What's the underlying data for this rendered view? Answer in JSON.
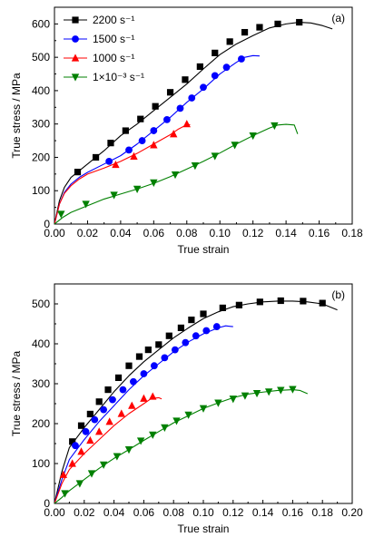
{
  "chart_data": [
    {
      "type": "line",
      "panel_label": "(a)",
      "xlabel": "True strain",
      "ylabel": "True stress / MPa",
      "xlim": [
        0,
        0.18
      ],
      "ylim": [
        0,
        650
      ],
      "xticks": [
        "0.00",
        "0.02",
        "0.04",
        "0.06",
        "0.08",
        "0.10",
        "0.12",
        "0.14",
        "0.16",
        "0.18"
      ],
      "yticks": [
        "0",
        "100",
        "200",
        "300",
        "400",
        "500",
        "600"
      ],
      "legend_position": "top-left",
      "series": [
        {
          "name": "2200 s⁻¹",
          "color": "#000000",
          "marker": "square",
          "curve": [
            [
              0,
              0
            ],
            [
              0.003,
              70
            ],
            [
              0.006,
              110
            ],
            [
              0.01,
              140
            ],
            [
              0.014,
              156
            ],
            [
              0.02,
              180
            ],
            [
              0.03,
              220
            ],
            [
              0.04,
              265
            ],
            [
              0.05,
              300
            ],
            [
              0.06,
              340
            ],
            [
              0.07,
              380
            ],
            [
              0.08,
              420
            ],
            [
              0.09,
              465
            ],
            [
              0.1,
              508
            ],
            [
              0.11,
              540
            ],
            [
              0.12,
              565
            ],
            [
              0.13,
              588
            ],
            [
              0.14,
              600
            ],
            [
              0.148,
              605
            ],
            [
              0.155,
              603
            ],
            [
              0.162,
              595
            ],
            [
              0.168,
              585
            ]
          ],
          "markers": [
            [
              0.014,
              156
            ],
            [
              0.025,
              200
            ],
            [
              0.034,
              243
            ],
            [
              0.043,
              280
            ],
            [
              0.052,
              315
            ],
            [
              0.061,
              353
            ],
            [
              0.07,
              395
            ],
            [
              0.079,
              433
            ],
            [
              0.088,
              472
            ],
            [
              0.097,
              513
            ],
            [
              0.106,
              547
            ],
            [
              0.115,
              575
            ],
            [
              0.124,
              590
            ],
            [
              0.135,
              600
            ],
            [
              0.148,
              605
            ]
          ]
        },
        {
          "name": "1500 s⁻¹",
          "color": "#0000ff",
          "marker": "circle",
          "curve": [
            [
              0,
              0
            ],
            [
              0.003,
              60
            ],
            [
              0.006,
              95
            ],
            [
              0.01,
              120
            ],
            [
              0.015,
              140
            ],
            [
              0.02,
              155
            ],
            [
              0.03,
              180
            ],
            [
              0.04,
              205
            ],
            [
              0.05,
              240
            ],
            [
              0.06,
              280
            ],
            [
              0.07,
              320
            ],
            [
              0.08,
              365
            ],
            [
              0.09,
              405
            ],
            [
              0.1,
              450
            ],
            [
              0.11,
              485
            ],
            [
              0.115,
              500
            ],
            [
              0.12,
              505
            ],
            [
              0.124,
              504
            ]
          ],
          "markers": [
            [
              0.033,
              188
            ],
            [
              0.045,
              222
            ],
            [
              0.053,
              250
            ],
            [
              0.06,
              280
            ],
            [
              0.068,
              313
            ],
            [
              0.076,
              347
            ],
            [
              0.083,
              378
            ],
            [
              0.09,
              410
            ],
            [
              0.097,
              445
            ],
            [
              0.104,
              470
            ],
            [
              0.113,
              495
            ]
          ]
        },
        {
          "name": "1000 s⁻¹",
          "color": "#ff0000",
          "marker": "triangle-up",
          "curve": [
            [
              0,
              0
            ],
            [
              0.003,
              60
            ],
            [
              0.006,
              92
            ],
            [
              0.01,
              115
            ],
            [
              0.015,
              135
            ],
            [
              0.02,
              150
            ],
            [
              0.03,
              168
            ],
            [
              0.04,
              188
            ],
            [
              0.05,
              212
            ],
            [
              0.06,
              240
            ],
            [
              0.07,
              268
            ],
            [
              0.075,
              285
            ],
            [
              0.08,
              298
            ],
            [
              0.082,
              298
            ]
          ],
          "markers": [
            [
              0.037,
              178
            ],
            [
              0.048,
              203
            ],
            [
              0.06,
              237
            ],
            [
              0.072,
              270
            ],
            [
              0.08,
              300
            ]
          ]
        },
        {
          "name": "1×10⁻³ s⁻¹",
          "color": "#008000",
          "marker": "triangle-down",
          "curve": [
            [
              0,
              0
            ],
            [
              0.005,
              20
            ],
            [
              0.01,
              35
            ],
            [
              0.02,
              55
            ],
            [
              0.03,
              75
            ],
            [
              0.04,
              90
            ],
            [
              0.05,
              105
            ],
            [
              0.06,
              122
            ],
            [
              0.07,
              142
            ],
            [
              0.08,
              165
            ],
            [
              0.09,
              188
            ],
            [
              0.1,
              213
            ],
            [
              0.11,
              240
            ],
            [
              0.12,
              265
            ],
            [
              0.13,
              288
            ],
            [
              0.135,
              297
            ],
            [
              0.14,
              299
            ],
            [
              0.145,
              297
            ],
            [
              0.147,
              270
            ]
          ],
          "markers": [
            [
              0.004,
              30
            ],
            [
              0.019,
              60
            ],
            [
              0.036,
              87
            ],
            [
              0.05,
              105
            ],
            [
              0.06,
              124
            ],
            [
              0.073,
              148
            ],
            [
              0.085,
              175
            ],
            [
              0.097,
              204
            ],
            [
              0.109,
              237
            ],
            [
              0.12,
              265
            ],
            [
              0.133,
              295
            ]
          ]
        }
      ]
    },
    {
      "type": "line",
      "panel_label": "(b)",
      "xlabel": "True strain",
      "ylabel": "True stress / MPa",
      "xlim": [
        0,
        0.2
      ],
      "ylim": [
        0,
        550
      ],
      "xticks": [
        "0.00",
        "0.02",
        "0.04",
        "0.06",
        "0.08",
        "0.10",
        "0.12",
        "0.14",
        "0.16",
        "0.18",
        "0.20"
      ],
      "yticks": [
        "0",
        "100",
        "200",
        "300",
        "400",
        "500"
      ],
      "series": [
        {
          "name": "2200 s⁻¹",
          "color": "#000000",
          "marker": "square",
          "curve": [
            [
              0,
              0
            ],
            [
              0.005,
              80
            ],
            [
              0.01,
              140
            ],
            [
              0.02,
              190
            ],
            [
              0.03,
              235
            ],
            [
              0.04,
              280
            ],
            [
              0.05,
              320
            ],
            [
              0.06,
              355
            ],
            [
              0.07,
              385
            ],
            [
              0.08,
              415
            ],
            [
              0.09,
              440
            ],
            [
              0.1,
              463
            ],
            [
              0.11,
              480
            ],
            [
              0.12,
              493
            ],
            [
              0.13,
              500
            ],
            [
              0.14,
              505
            ],
            [
              0.15,
              507
            ],
            [
              0.16,
              507
            ],
            [
              0.17,
              505
            ],
            [
              0.18,
              500
            ],
            [
              0.19,
              485
            ]
          ],
          "markers": [
            [
              0.012,
              155
            ],
            [
              0.018,
              195
            ],
            [
              0.024,
              224
            ],
            [
              0.03,
              255
            ],
            [
              0.036,
              285
            ],
            [
              0.043,
              315
            ],
            [
              0.05,
              345
            ],
            [
              0.057,
              368
            ],
            [
              0.063,
              385
            ],
            [
              0.07,
              398
            ],
            [
              0.077,
              420
            ],
            [
              0.085,
              440
            ],
            [
              0.092,
              460
            ],
            [
              0.1,
              475
            ],
            [
              0.113,
              490
            ],
            [
              0.124,
              497
            ],
            [
              0.138,
              505
            ],
            [
              0.152,
              508
            ],
            [
              0.167,
              507
            ],
            [
              0.18,
              502
            ]
          ]
        },
        {
          "name": "1500 s⁻¹",
          "color": "#0000ff",
          "marker": "circle",
          "curve": [
            [
              0,
              0
            ],
            [
              0.005,
              60
            ],
            [
              0.01,
              110
            ],
            [
              0.02,
              160
            ],
            [
              0.03,
              205
            ],
            [
              0.04,
              245
            ],
            [
              0.05,
              285
            ],
            [
              0.06,
              320
            ],
            [
              0.07,
              350
            ],
            [
              0.08,
              380
            ],
            [
              0.09,
              405
            ],
            [
              0.1,
              425
            ],
            [
              0.11,
              440
            ],
            [
              0.115,
              445
            ],
            [
              0.12,
              443
            ]
          ],
          "markers": [
            [
              0.014,
              145
            ],
            [
              0.021,
              180
            ],
            [
              0.027,
              210
            ],
            [
              0.033,
              235
            ],
            [
              0.039,
              260
            ],
            [
              0.046,
              285
            ],
            [
              0.053,
              305
            ],
            [
              0.06,
              325
            ],
            [
              0.067,
              345
            ],
            [
              0.074,
              365
            ],
            [
              0.081,
              385
            ],
            [
              0.088,
              403
            ],
            [
              0.095,
              420
            ],
            [
              0.102,
              433
            ],
            [
              0.109,
              443
            ]
          ]
        },
        {
          "name": "1000 s⁻¹",
          "color": "#ff0000",
          "marker": "triangle-up",
          "curve": [
            [
              0,
              0
            ],
            [
              0.005,
              50
            ],
            [
              0.01,
              85
            ],
            [
              0.02,
              125
            ],
            [
              0.03,
              160
            ],
            [
              0.04,
              195
            ],
            [
              0.05,
              225
            ],
            [
              0.06,
              250
            ],
            [
              0.065,
              263
            ],
            [
              0.07,
              265
            ],
            [
              0.072,
              262
            ]
          ],
          "markers": [
            [
              0.006,
              72
            ],
            [
              0.012,
              100
            ],
            [
              0.018,
              130
            ],
            [
              0.024,
              158
            ],
            [
              0.03,
              180
            ],
            [
              0.037,
              205
            ],
            [
              0.045,
              225
            ],
            [
              0.052,
              245
            ],
            [
              0.06,
              263
            ],
            [
              0.066,
              268
            ]
          ]
        },
        {
          "name": "1×10⁻³ s⁻¹",
          "color": "#008000",
          "marker": "triangle-down",
          "curve": [
            [
              0,
              0
            ],
            [
              0.005,
              15
            ],
            [
              0.01,
              32
            ],
            [
              0.02,
              60
            ],
            [
              0.03,
              88
            ],
            [
              0.04,
              113
            ],
            [
              0.05,
              135
            ],
            [
              0.06,
              158
            ],
            [
              0.07,
              180
            ],
            [
              0.08,
              202
            ],
            [
              0.09,
              220
            ],
            [
              0.1,
              238
            ],
            [
              0.11,
              252
            ],
            [
              0.12,
              265
            ],
            [
              0.13,
              274
            ],
            [
              0.14,
              279
            ],
            [
              0.15,
              283
            ],
            [
              0.16,
              285
            ],
            [
              0.165,
              283
            ],
            [
              0.17,
              275
            ]
          ],
          "markers": [
            [
              0.007,
              25
            ],
            [
              0.017,
              50
            ],
            [
              0.025,
              75
            ],
            [
              0.033,
              97
            ],
            [
              0.042,
              118
            ],
            [
              0.05,
              135
            ],
            [
              0.058,
              157
            ],
            [
              0.066,
              172
            ],
            [
              0.074,
              190
            ],
            [
              0.082,
              207
            ],
            [
              0.09,
              222
            ],
            [
              0.1,
              238
            ],
            [
              0.11,
              252
            ],
            [
              0.12,
              262
            ],
            [
              0.128,
              270
            ],
            [
              0.136,
              276
            ],
            [
              0.144,
              280
            ],
            [
              0.152,
              284
            ],
            [
              0.16,
              286
            ]
          ]
        }
      ]
    }
  ]
}
